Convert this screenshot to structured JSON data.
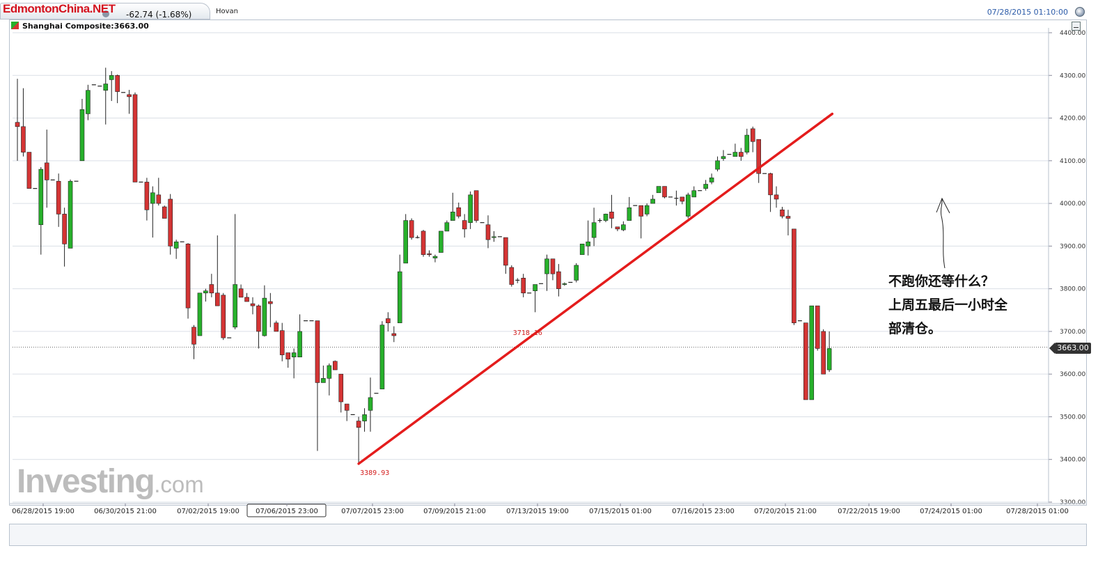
{
  "header": {
    "watermark": "EdmontonChina.NET",
    "tab_change": "-62.74 (-1.68%)",
    "user": "Hovan",
    "datetime": "07/28/2015 01:10:00"
  },
  "legend": {
    "label": "Shanghai Composite:3663.00"
  },
  "annotation": {
    "lines": [
      "不跑你还等什么？",
      "上周五最后一小时全",
      "部清仓。"
    ]
  },
  "logo": {
    "brand": "Investing",
    "suffix": ".com"
  },
  "colors": {
    "up": "#27b02b",
    "down": "#d43434",
    "trendline": "#e41c1c",
    "grid": "#dadfe6"
  },
  "chart_data": {
    "type": "candlestick",
    "title": "Shanghai Composite",
    "last_price": "3663.00",
    "ylim": [
      3300,
      4400
    ],
    "yticks": [
      "3300.00",
      "3400.00",
      "3500.00",
      "3600.00",
      "3700.00",
      "3800.00",
      "3900.00",
      "4000.00",
      "4100.00",
      "4200.00",
      "4300.00",
      "4400.00"
    ],
    "xticks": [
      "06/28/2015 19:00",
      "06/30/2015 21:00",
      "07/02/2015 19:00",
      "07/06/2015 23:00",
      "07/07/2015 23:00",
      "07/09/2015 21:00",
      "07/13/2015 19:00",
      "07/15/2015 01:00",
      "07/16/2015 23:00",
      "07/20/2015 21:00",
      "07/22/2015 19:00",
      "07/24/2015 01:00",
      "07/28/2015 01:00"
    ],
    "xticks_highlighted": "07/06/2015 23:00",
    "candles": [
      [
        4190,
        4180,
        4292,
        4100
      ],
      [
        4180,
        4120,
        4270,
        4110
      ],
      [
        4120,
        4035,
        4120,
        4035
      ],
      [
        4035,
        4035,
        4035,
        4035
      ],
      [
        3950,
        4080,
        4085,
        3880
      ],
      [
        4095,
        4055,
        4173,
        3990
      ],
      [
        4055,
        4055,
        4055,
        4055
      ],
      [
        4052,
        3975,
        4070,
        3945
      ],
      [
        3975,
        3905,
        3990,
        3852
      ],
      [
        3895,
        4052,
        4056,
        3895
      ],
      [
        4052,
        4052,
        4052,
        4052
      ],
      [
        4100,
        4220,
        4245,
        4100
      ],
      [
        4210,
        4265,
        4278,
        4195
      ],
      [
        4278,
        4278,
        4278,
        4278
      ],
      [
        4275,
        4275,
        4275,
        4275
      ],
      [
        4265,
        4280,
        4318,
        4185
      ],
      [
        4290,
        4300,
        4310,
        4240
      ],
      [
        4300,
        4262,
        4302,
        4235
      ],
      [
        4260,
        4260,
        4260,
        4260
      ],
      [
        4255,
        4250,
        4266,
        4210
      ],
      [
        4255,
        4050,
        4260,
        4050
      ],
      [
        4050,
        4050,
        4050,
        4050
      ],
      [
        4050,
        3985,
        4060,
        3960
      ],
      [
        4000,
        4025,
        4040,
        3920
      ],
      [
        4020,
        4000,
        4060,
        3995
      ],
      [
        3992,
        3965,
        3995,
        3970
      ],
      [
        4010,
        3900,
        4022,
        3880
      ],
      [
        3895,
        3910,
        3915,
        3870
      ],
      [
        3910,
        3910,
        3910,
        3910
      ],
      [
        3905,
        3755,
        3907,
        3730
      ],
      [
        3710,
        3670,
        3715,
        3635
      ],
      [
        3690,
        3790,
        3790,
        3690
      ],
      [
        3790,
        3795,
        3800,
        3770
      ],
      [
        3810,
        3790,
        3835,
        3780
      ],
      [
        3790,
        3760,
        3925,
        3760
      ],
      [
        3785,
        3685,
        3790,
        3680
      ],
      [
        3685,
        3685,
        3685,
        3685
      ],
      [
        3710,
        3810,
        3975,
        3705
      ],
      [
        3800,
        3780,
        3810,
        3780
      ],
      [
        3780,
        3770,
        3790,
        3770
      ],
      [
        3765,
        3760,
        3780,
        3740
      ],
      [
        3760,
        3700,
        3763,
        3660
      ],
      [
        3690,
        3778,
        3808,
        3688
      ],
      [
        3770,
        3765,
        3790,
        3710
      ],
      [
        3720,
        3700,
        3725,
        3700
      ],
      [
        3702,
        3645,
        3720,
        3630
      ],
      [
        3650,
        3635,
        3650,
        3615
      ],
      [
        3640,
        3650,
        3660,
        3590
      ],
      [
        3640,
        3700,
        3740,
        3640
      ],
      [
        3725,
        3725,
        3725,
        3725
      ],
      [
        3725,
        3725,
        3725,
        3725
      ],
      [
        3725,
        3580,
        3725,
        3420
      ],
      [
        3580,
        3590,
        3620,
        3590
      ],
      [
        3590,
        3620,
        3625,
        3550
      ],
      [
        3630,
        3610,
        3632,
        3610
      ],
      [
        3600,
        3535,
        3600,
        3510
      ],
      [
        3530,
        3515,
        3530,
        3490
      ],
      [
        3505,
        3505,
        3505,
        3505
      ],
      [
        3490,
        3475,
        3500,
        3390
      ],
      [
        3490,
        3505,
        3520,
        3465
      ],
      [
        3515,
        3545,
        3592,
        3465
      ],
      [
        3555,
        3555,
        3555,
        3555
      ],
      [
        3565,
        3715,
        3724,
        3565
      ],
      [
        3730,
        3720,
        3745,
        3700
      ],
      [
        3695,
        3690,
        3712,
        3675
      ],
      [
        3720,
        3840,
        3880,
        3720
      ],
      [
        3860,
        3960,
        3975,
        3860
      ],
      [
        3960,
        3920,
        3965,
        3915
      ],
      [
        3920,
        3920,
        3925,
        3918
      ],
      [
        3935,
        3880,
        3938,
        3875
      ],
      [
        3882,
        3880,
        3890,
        3875
      ],
      [
        3872,
        3876,
        3880,
        3862
      ],
      [
        3885,
        3935,
        3935,
        3885
      ],
      [
        3935,
        3955,
        3960,
        3935
      ],
      [
        3960,
        3980,
        4025,
        3960
      ],
      [
        3990,
        3970,
        4002,
        3965
      ],
      [
        3960,
        3940,
        3975,
        3920
      ],
      [
        3955,
        4020,
        4028,
        3940
      ],
      [
        4030,
        3960,
        4030,
        3955
      ],
      [
        3955,
        3955,
        3955,
        3955
      ],
      [
        3950,
        3915,
        3972,
        3895
      ],
      [
        3920,
        3922,
        3935,
        3910
      ],
      [
        3922,
        3922,
        3922,
        3922
      ],
      [
        3920,
        3855,
        3920,
        3835
      ],
      [
        3850,
        3810,
        3855,
        3805
      ],
      [
        3820,
        3820,
        3825,
        3813
      ],
      [
        3825,
        3790,
        3835,
        3780
      ],
      [
        3790,
        3790,
        3790,
        3790
      ],
      [
        3795,
        3810,
        3810,
        3745
      ],
      [
        3812,
        3812,
        3812,
        3812
      ],
      [
        3835,
        3870,
        3880,
        3795
      ],
      [
        3870,
        3835,
        3850,
        3820
      ],
      [
        3840,
        3800,
        3858,
        3782
      ],
      [
        3810,
        3812,
        3815,
        3807
      ],
      [
        3815,
        3815,
        3815,
        3815
      ],
      [
        3820,
        3855,
        3860,
        3815
      ],
      [
        3880,
        3905,
        3905,
        3880
      ],
      [
        3900,
        3910,
        3960,
        3878
      ],
      [
        3920,
        3955,
        3990,
        3900
      ],
      [
        3960,
        3960,
        3965,
        3955
      ],
      [
        3960,
        3975,
        3976,
        3956
      ],
      [
        3980,
        3965,
        4020,
        3942
      ],
      [
        3945,
        3940,
        3945,
        3935
      ],
      [
        3938,
        3950,
        3958,
        3935
      ],
      [
        3960,
        3990,
        4015,
        3960
      ],
      [
        3995,
        3995,
        3995,
        3995
      ],
      [
        3995,
        3970,
        3995,
        3918
      ],
      [
        3975,
        3995,
        4000,
        3970
      ],
      [
        4000,
        4010,
        4020,
        4000
      ],
      [
        4025,
        4040,
        4040,
        4025
      ],
      [
        4040,
        4015,
        4040,
        4012
      ],
      [
        4015,
        4015,
        4015,
        4015
      ],
      [
        4012,
        4012,
        4030,
        3995
      ],
      [
        4015,
        4005,
        4015,
        3998
      ],
      [
        3970,
        4020,
        4025,
        3965
      ],
      [
        4015,
        4030,
        4040,
        4015
      ],
      [
        4030,
        4030,
        4030,
        4030
      ],
      [
        4035,
        4045,
        4055,
        4030
      ],
      [
        4050,
        4060,
        4070,
        4045
      ],
      [
        4080,
        4100,
        4110,
        4075
      ],
      [
        4105,
        4110,
        4125,
        4100
      ],
      [
        4115,
        4115,
        4115,
        4115
      ],
      [
        4110,
        4120,
        4140,
        4110
      ],
      [
        4120,
        4110,
        4130,
        4100
      ],
      [
        4120,
        4160,
        4175,
        4115
      ],
      [
        4175,
        4145,
        4180,
        4120
      ],
      [
        4150,
        4070,
        4150,
        4048
      ],
      [
        4070,
        4070,
        4070,
        4070
      ],
      [
        4070,
        4020,
        4072,
        3980
      ],
      [
        4020,
        4010,
        4040,
        3990
      ],
      [
        3985,
        3970,
        3992,
        3965
      ],
      [
        3970,
        3965,
        3985,
        3925
      ],
      [
        3940,
        3720,
        3940,
        3715
      ],
      [
        3725,
        3725,
        3725,
        3725
      ],
      [
        3720,
        3540,
        3720,
        3540
      ],
      [
        3540,
        3760,
        3760,
        3540
      ],
      [
        3760,
        3660,
        3760,
        3655
      ],
      [
        3700,
        3600,
        3705,
        3600
      ],
      [
        3610,
        3660,
        3700,
        3605
      ]
    ],
    "annotations": [
      {
        "text": "3389.93",
        "x_index": 58,
        "y": 3389.93
      },
      {
        "text": "3718.16",
        "x_index": 84,
        "y": 3718.16
      }
    ],
    "trendline": {
      "x_index": [
        58,
        138.5
      ],
      "y": [
        3389.93,
        4210
      ]
    },
    "current_price_line": 3663,
    "grid": true
  }
}
